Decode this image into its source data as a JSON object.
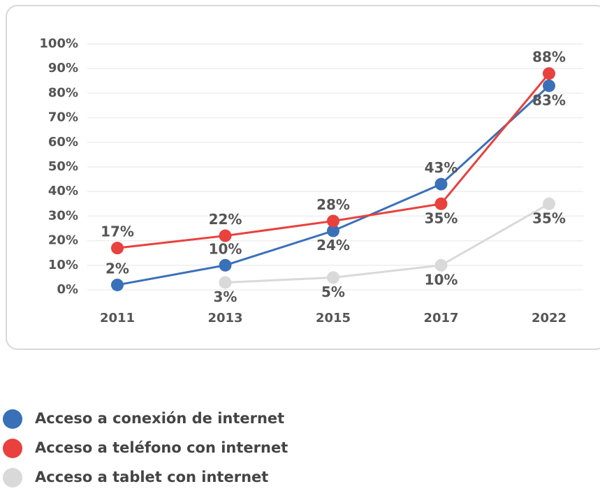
{
  "chart_data": {
    "type": "line",
    "categories": [
      "2011",
      "2013",
      "2015",
      "2017",
      "2022"
    ],
    "series": [
      {
        "name": "Acceso a conexión de internet",
        "color": "#3a70b8",
        "values": [
          2,
          10,
          24,
          43,
          83
        ],
        "value_labels": [
          "2%",
          "10%",
          "24%",
          "43%",
          "83%"
        ]
      },
      {
        "name": "Acceso a teléfono con internet",
        "color": "#e8413e",
        "values": [
          17,
          22,
          28,
          35,
          88
        ],
        "value_labels": [
          "17%",
          "22%",
          "28%",
          "35%",
          "88%"
        ]
      },
      {
        "name": "Acceso a tablet con internet",
        "color": "#d9d9d9",
        "values": [
          null,
          3,
          5,
          10,
          35
        ],
        "value_labels": [
          null,
          "3%",
          "5%",
          "10%",
          "35%"
        ]
      }
    ],
    "ylim": [
      0,
      100
    ],
    "yticks": [
      {
        "value": 0,
        "label": "0%"
      },
      {
        "value": 10,
        "label": "10%"
      },
      {
        "value": 20,
        "label": "20%"
      },
      {
        "value": 30,
        "label": "30%"
      },
      {
        "value": 40,
        "label": "40%"
      },
      {
        "value": 50,
        "label": "50%"
      },
      {
        "value": 60,
        "label": "60%"
      },
      {
        "value": 70,
        "label": "70%"
      },
      {
        "value": 80,
        "label": "80%"
      },
      {
        "value": 90,
        "label": "90%"
      },
      {
        "value": 100,
        "label": "100%"
      }
    ],
    "grid": true
  }
}
